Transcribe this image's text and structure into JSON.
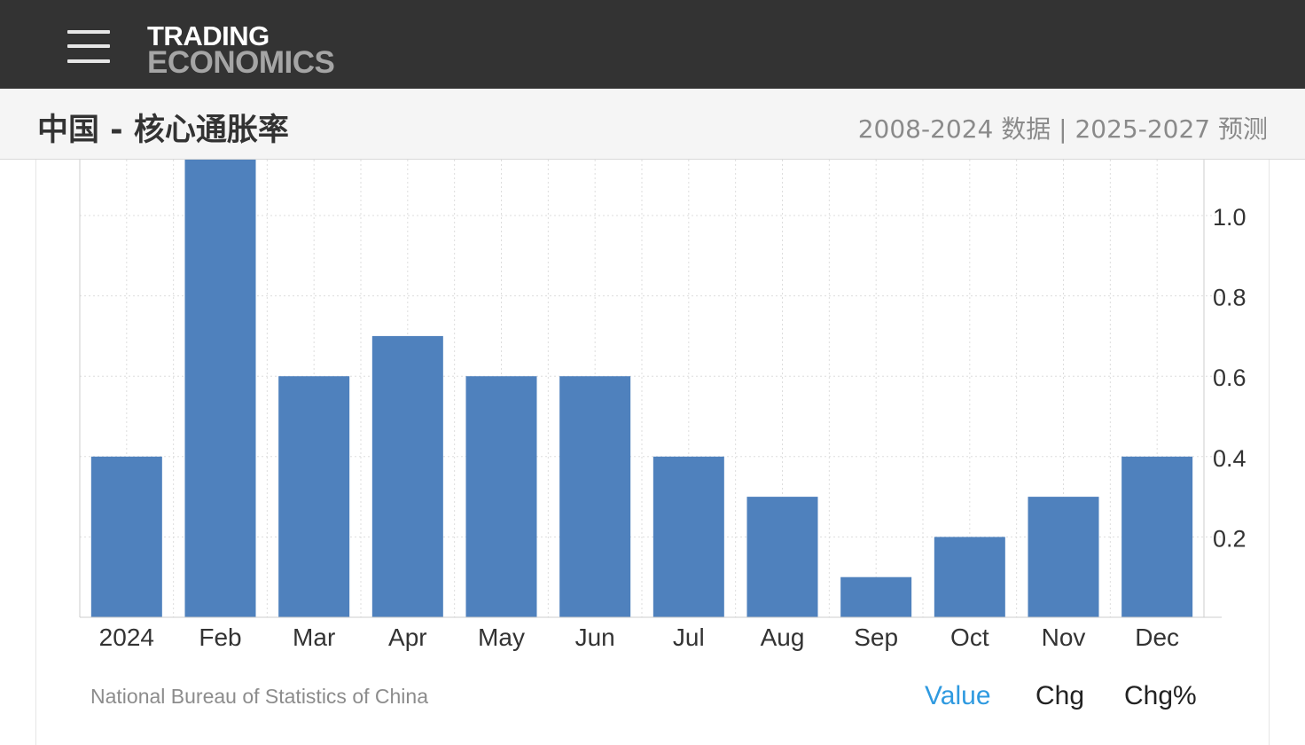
{
  "header": {
    "logo_line1": "TRADING",
    "logo_line2": "ECONOMICS"
  },
  "titlebar": {
    "title": "中国 - 核心通胀率",
    "range": "2008-2024 数据 | 2025-2027 预测"
  },
  "chart_data": {
    "type": "bar",
    "categories": [
      "2024",
      "Feb",
      "Mar",
      "Apr",
      "May",
      "Jun",
      "Jul",
      "Aug",
      "Sep",
      "Oct",
      "Nov",
      "Dec"
    ],
    "values": [
      0.4,
      1.2,
      0.6,
      0.7,
      0.6,
      0.6,
      0.4,
      0.3,
      0.1,
      0.2,
      0.3,
      0.4
    ],
    "y_ticks": [
      0.2,
      0.4,
      0.6,
      0.8,
      1.0
    ],
    "ylim": [
      0,
      1.14
    ],
    "y_axis_side": "right",
    "grid": true,
    "bar_color": "#4f81bd"
  },
  "footer": {
    "source": "National Bureau of Statistics of China",
    "tabs": {
      "value": "Value",
      "chg": "Chg",
      "chg_pct": "Chg%"
    },
    "active_tab_color": "#2f9ae0"
  }
}
